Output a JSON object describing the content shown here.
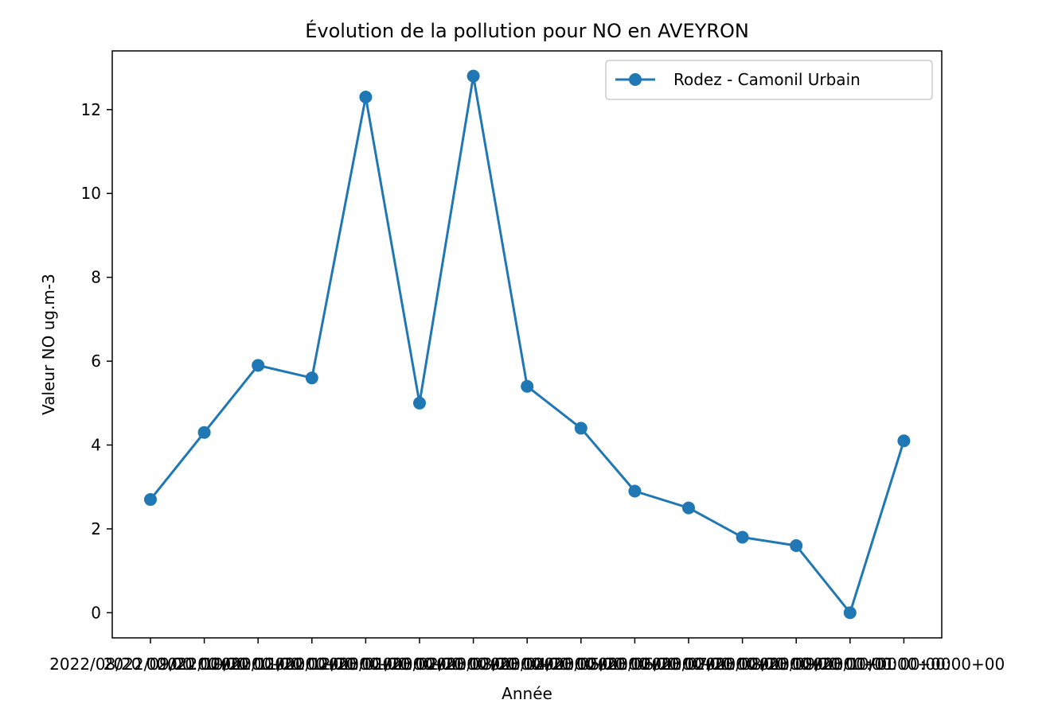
{
  "chart_data": {
    "type": "line",
    "title": "Évolution de la pollution pour NO en AVEYRON",
    "xlabel": "Année",
    "ylabel": "Valeur NO ug.m-3",
    "ylim": [
      -0.6,
      13.4
    ],
    "yticks": [
      0,
      2,
      4,
      6,
      8,
      10,
      12
    ],
    "grid": false,
    "legend_position": "top-right",
    "categories": [
      "2022/08/20 00:00:00+00",
      "2022/09/20 00:00:00+00",
      "2022/10/20 00:00:00+00",
      "2022/11/20 00:00:00+00",
      "2022/12/20 00:00:00+00",
      "2023/01/20 00:00:00+00",
      "2023/02/20 00:00:00+00",
      "2023/03/20 00:00:00+00",
      "2023/04/20 00:00:00+00",
      "2023/05/20 00:00:00+00",
      "2023/06/20 00:00:00+00",
      "2023/07/20 00:00:00+00",
      "2023/08/20 00:00:00+00",
      "2023/09/20 00:00:00+00",
      "2023/10/01 00:00:00+00"
    ],
    "series": [
      {
        "name": "Rodez - Camonil Urbain",
        "color": "#1f77b4",
        "marker": "circle",
        "values": [
          2.7,
          4.3,
          5.9,
          5.6,
          12.3,
          5.0,
          12.8,
          5.4,
          4.4,
          2.9,
          2.5,
          1.8,
          1.6,
          0.0,
          4.1
        ]
      }
    ]
  }
}
